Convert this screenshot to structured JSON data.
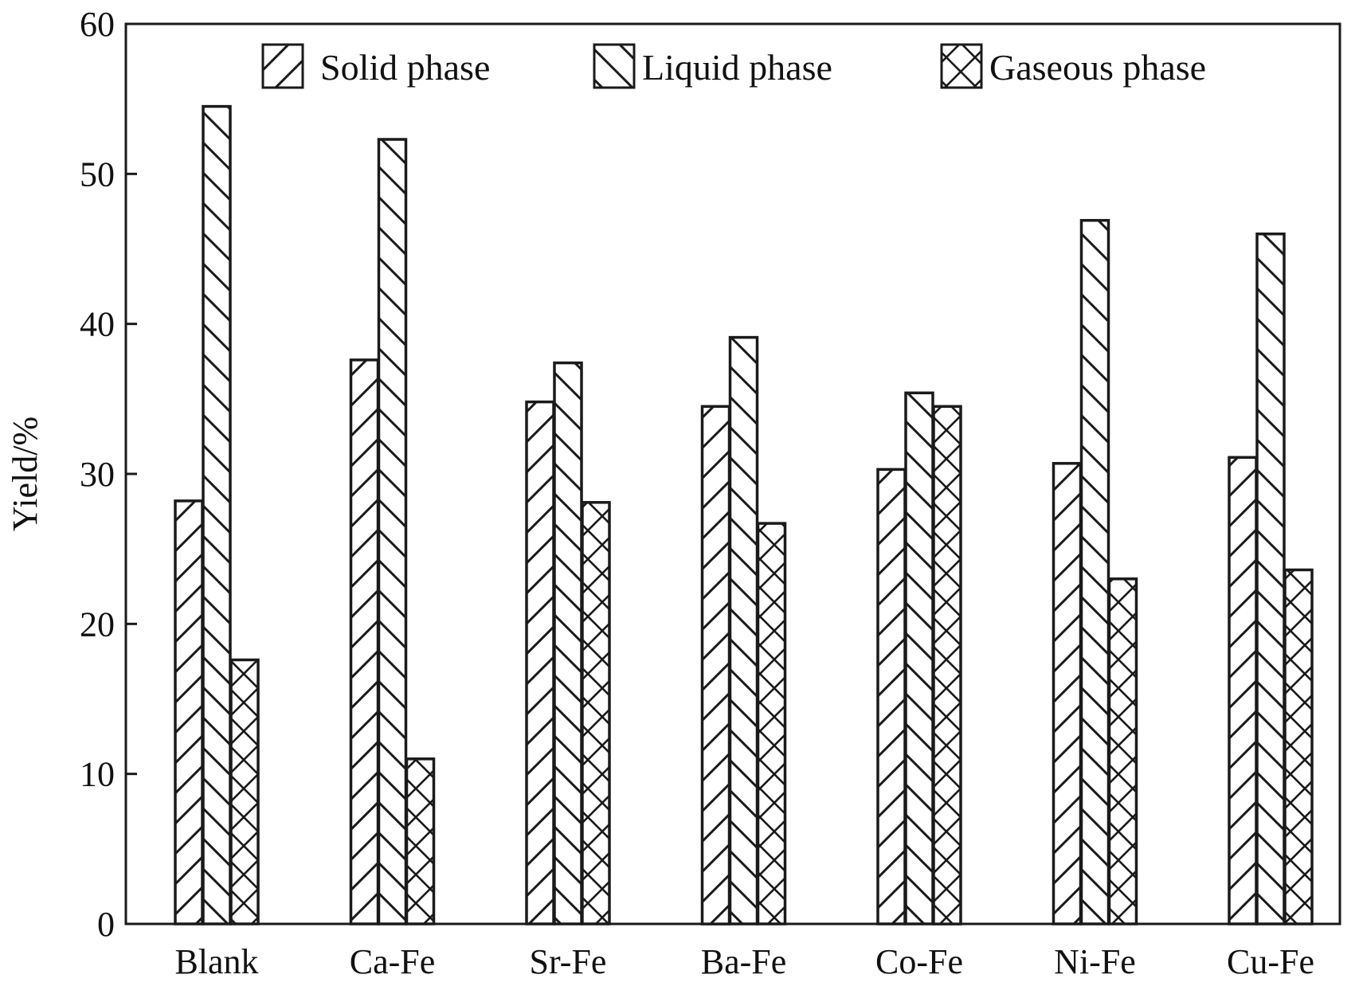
{
  "chart_data": {
    "type": "bar",
    "title": "",
    "xlabel": "",
    "ylabel": "Yield/%",
    "ylim": [
      0,
      60
    ],
    "yticks": [
      0,
      10,
      20,
      30,
      40,
      50,
      60
    ],
    "grid": false,
    "legend_position": "top",
    "categories": [
      "Blank",
      "Ca-Fe",
      "Sr-Fe",
      "Ba-Fe",
      "Co-Fe",
      "Ni-Fe",
      "Cu-Fe"
    ],
    "series": [
      {
        "name": "Solid phase",
        "pattern": "forward-hatch",
        "values": [
          28.2,
          37.6,
          34.8,
          34.5,
          30.3,
          30.7,
          31.1
        ]
      },
      {
        "name": "Liquid phase",
        "pattern": "back-hatch",
        "values": [
          54.5,
          52.3,
          37.4,
          39.1,
          35.4,
          46.9,
          46.0
        ]
      },
      {
        "name": "Gaseous phase",
        "pattern": "cross-hatch",
        "values": [
          17.6,
          11.0,
          28.1,
          26.7,
          34.5,
          23.0,
          23.6
        ]
      }
    ],
    "colors": {
      "stroke": "#1a1a1a",
      "background": "#ffffff"
    }
  }
}
